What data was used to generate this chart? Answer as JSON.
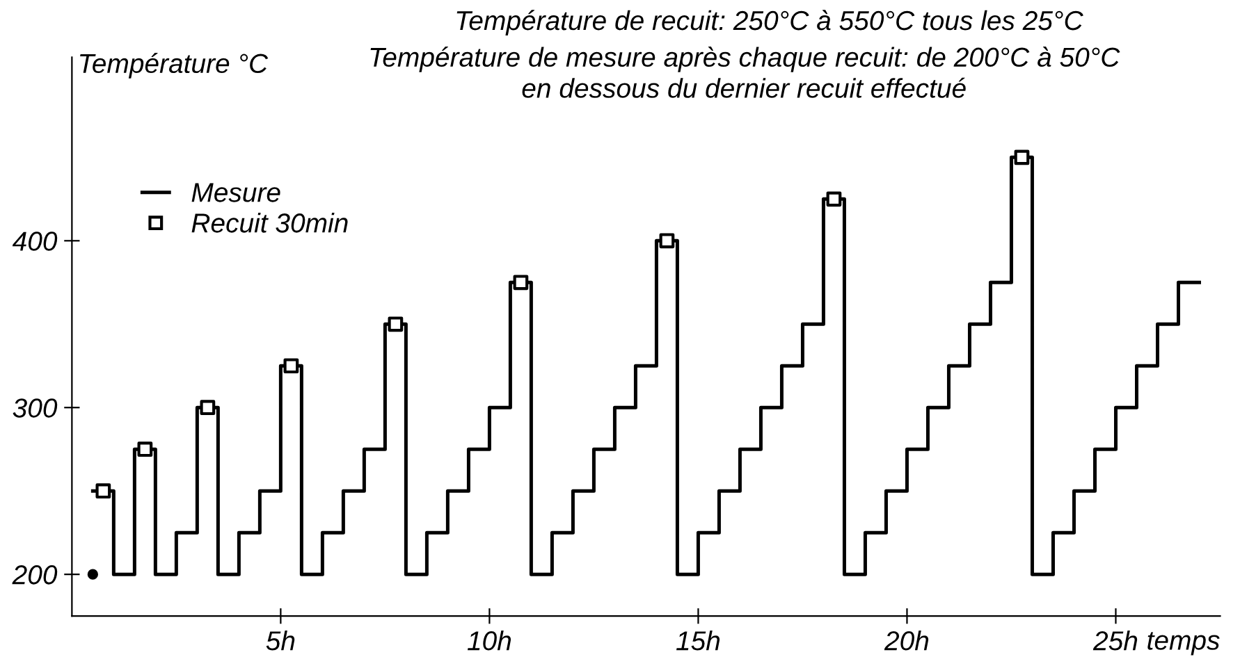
{
  "chart_data": {
    "type": "step",
    "title": "Température de recuit: 250°C à 550°C tous les 25°C",
    "subtitle": "Température de mesure après chaque recuit: de 200°C à 50°C\nen dessous du dernier recuit effectué",
    "xlabel": "temps",
    "ylabel": "Température °C",
    "xlim": [
      0,
      27.5
    ],
    "ylim": [
      175,
      510
    ],
    "xticks": [
      {
        "value": 5,
        "label": "5h"
      },
      {
        "value": 10,
        "label": "10h"
      },
      {
        "value": 15,
        "label": "15h"
      },
      {
        "value": 20,
        "label": "20h"
      },
      {
        "value": 25,
        "label": "25h"
      }
    ],
    "yticks": [
      200,
      300,
      400
    ],
    "grid": false,
    "legend": "top left",
    "series": [
      {
        "name": "Mesure",
        "color": "#000000",
        "marker": "none",
        "x": [
          0.5,
          1.0,
          1.5,
          2.0,
          2.5,
          3.0,
          3.5,
          4.0,
          4.5,
          5.0,
          5.5,
          6.0,
          6.5,
          7.0,
          7.5,
          8.0,
          8.5,
          9.0,
          9.5,
          10.0,
          10.5,
          11.0,
          11.5,
          12.0,
          12.5,
          13.0,
          13.5,
          14.0,
          14.5,
          15.0,
          15.5,
          16.0,
          16.5,
          17.0,
          17.5,
          18.0,
          18.5,
          19.0,
          19.5,
          20.0,
          20.5,
          21.0,
          21.5,
          22.0,
          22.5,
          23.0,
          23.5,
          24.0,
          24.5,
          25.0,
          25.5,
          26.0,
          26.5,
          27.0
        ],
        "values": [
          250,
          200,
          275,
          200,
          225,
          300,
          200,
          225,
          250,
          325,
          200,
          225,
          250,
          275,
          350,
          200,
          225,
          250,
          275,
          300,
          375,
          200,
          225,
          250,
          275,
          300,
          325,
          400,
          200,
          225,
          250,
          275,
          300,
          325,
          350,
          425,
          200,
          225,
          250,
          275,
          300,
          325,
          350,
          375,
          450,
          200,
          225,
          250,
          275,
          300,
          325,
          350,
          375,
          375
        ]
      },
      {
        "name": "Recuit 30min",
        "type": "scatter",
        "color": "#000000",
        "marker": "square",
        "x": [
          0.75,
          1.75,
          3.25,
          5.25,
          7.75,
          10.75,
          14.25,
          18.25,
          22.75
        ],
        "values": [
          250,
          275,
          300,
          325,
          350,
          375,
          400,
          425,
          450
        ]
      },
      {
        "type": "scatter",
        "color": "#000000",
        "marker": "circle",
        "x": [
          0.5
        ],
        "values": [
          200
        ]
      }
    ]
  }
}
